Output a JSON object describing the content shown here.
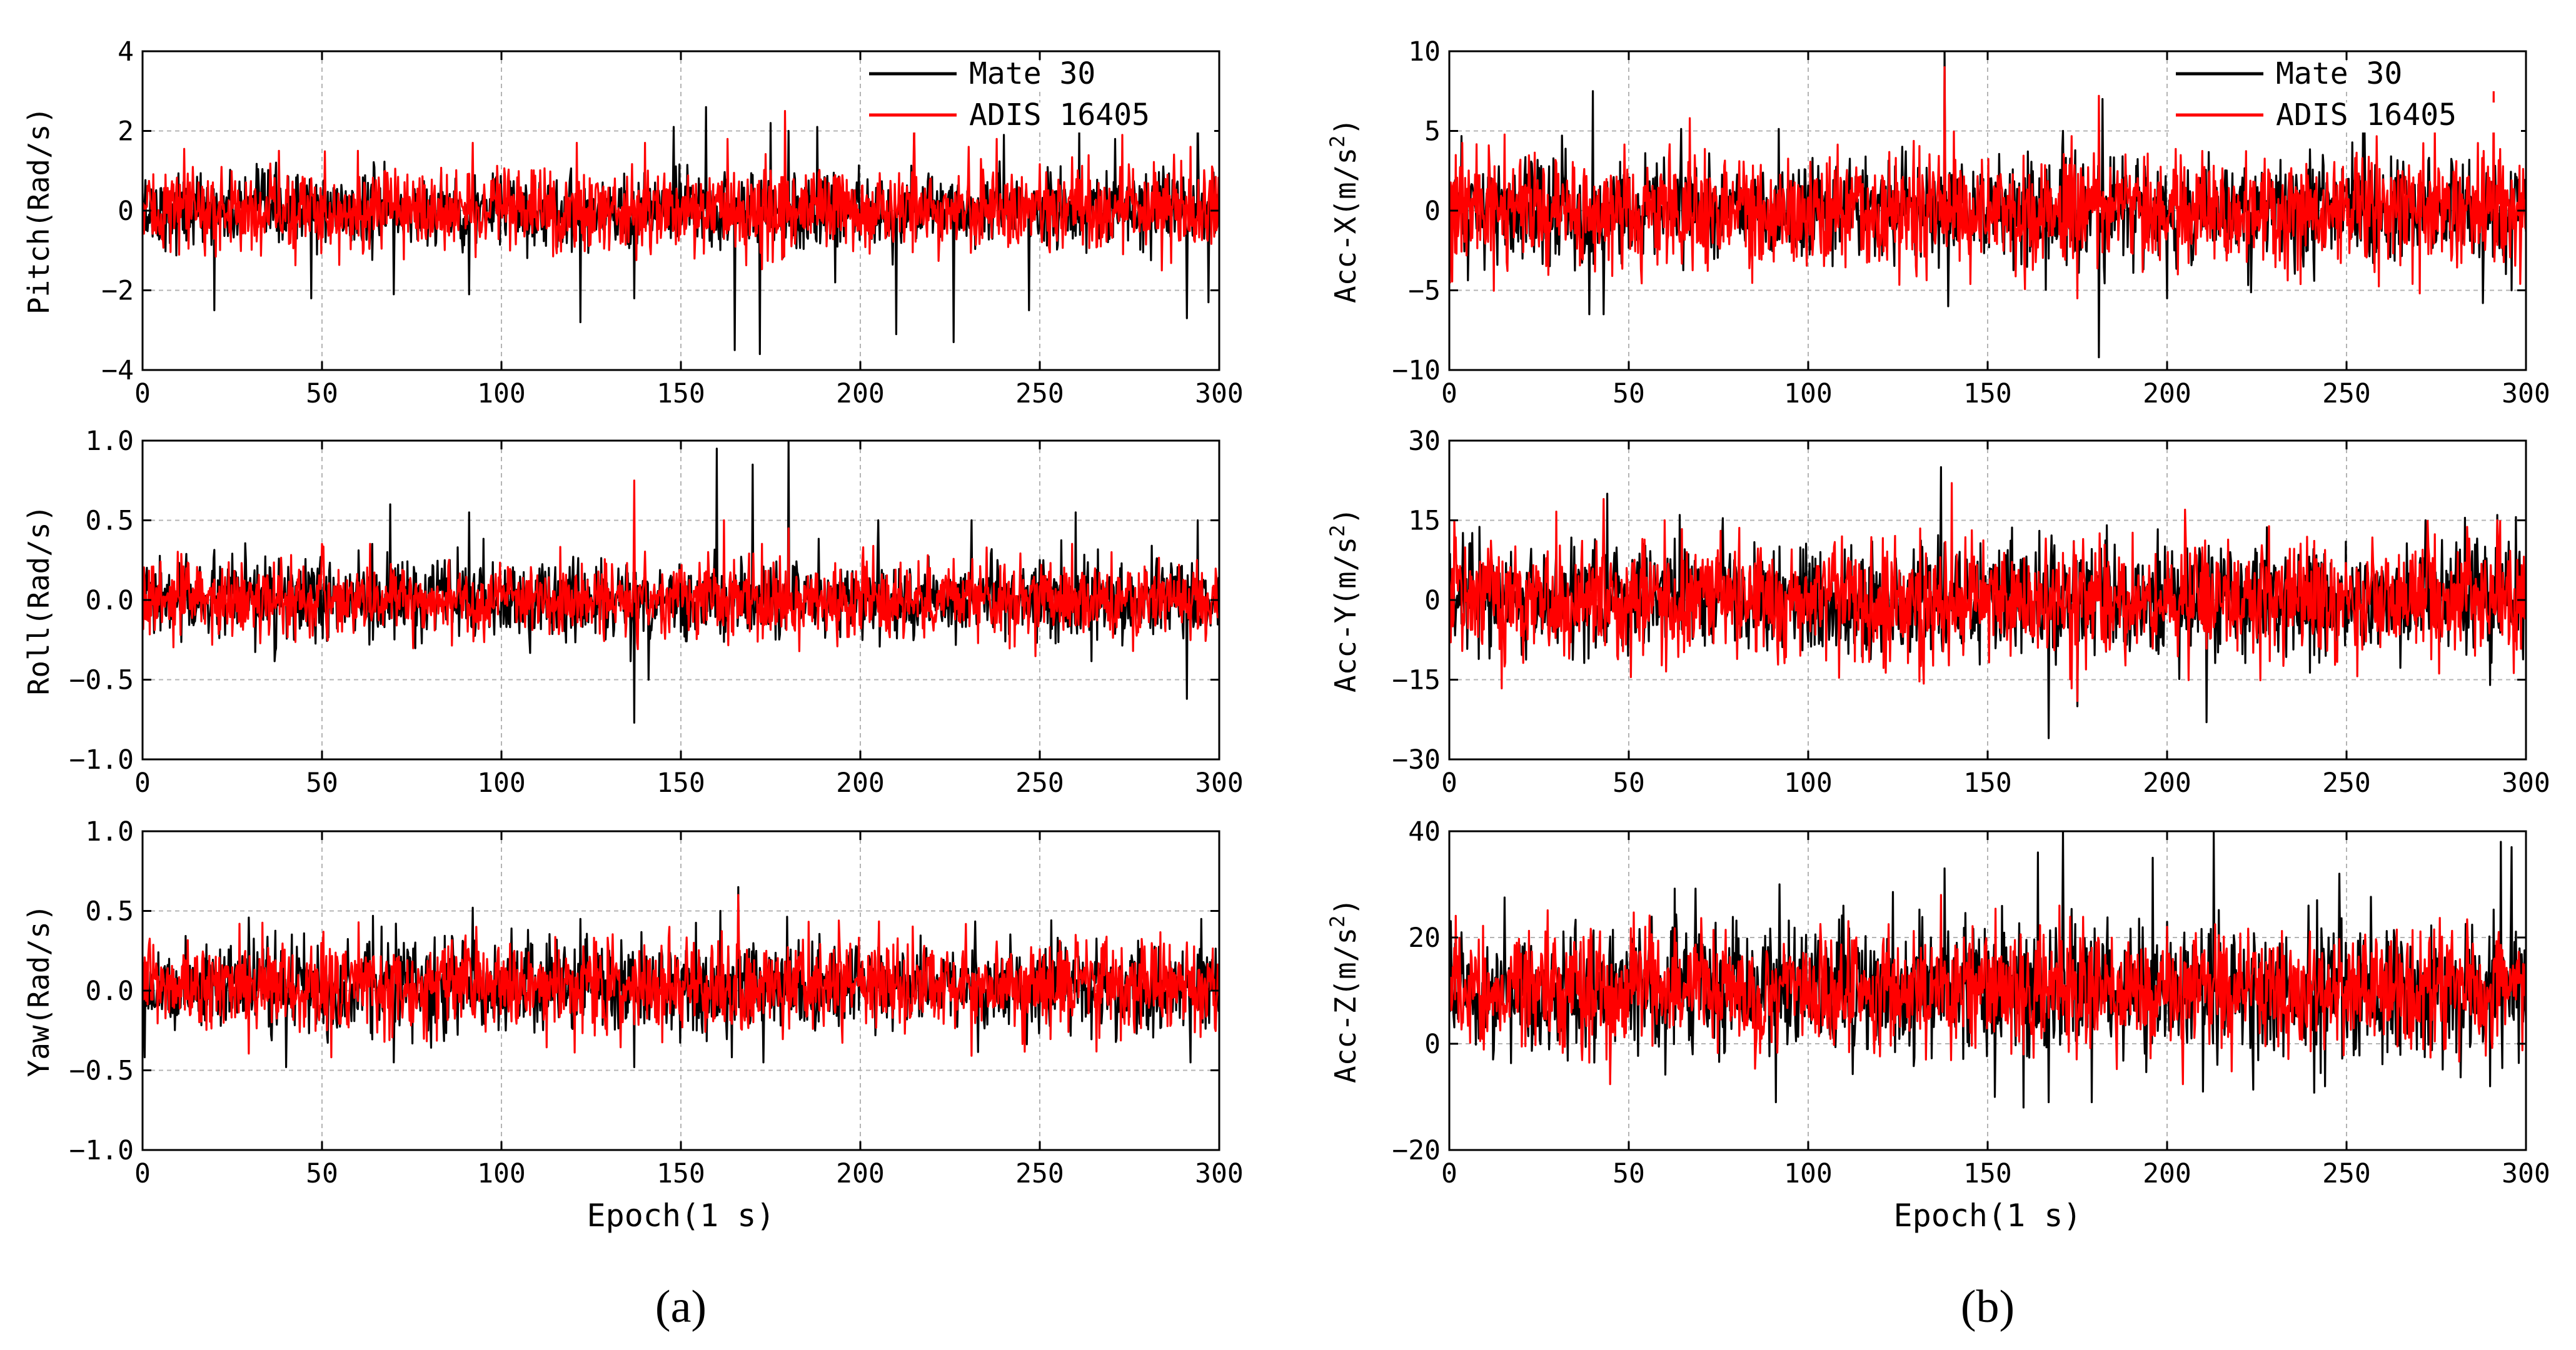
{
  "figure": {
    "panel_labels": [
      "(a)",
      "(b)"
    ],
    "colors": {
      "mate": "#000000",
      "adis": "#ff0000",
      "grid": "#b4b4b4",
      "axis": "#000000"
    }
  },
  "chart_data": [
    {
      "type": "line",
      "id": "pitch",
      "panel": "a",
      "ylabel": "Pitch(Rad/s)",
      "xlabel": "",
      "xlim": [
        0,
        300
      ],
      "ylim": [
        -4,
        4
      ],
      "xticks": [
        0,
        50,
        100,
        150,
        200,
        250,
        300
      ],
      "yticks": [
        -4,
        -2,
        0,
        2,
        4
      ],
      "ytick_labels": [
        "−4",
        "−2",
        "0",
        "2",
        "4"
      ],
      "legend": {
        "position": "top-right",
        "entries": [
          "Mate 30",
          "ADIS 16405"
        ]
      },
      "series": [
        {
          "name": "Mate 30",
          "center": 0.0,
          "amplitude": 0.45,
          "peaks": [
            [
              20,
              -2.5
            ],
            [
              47,
              -2.2
            ],
            [
              70,
              -2.1
            ],
            [
              91,
              -2.1
            ],
            [
              122,
              -2.8
            ],
            [
              137,
              -2.2
            ],
            [
              148,
              2.1
            ],
            [
              157,
              2.6
            ],
            [
              165,
              -3.5
            ],
            [
              172,
              -3.6
            ],
            [
              175,
              2.2
            ],
            [
              180,
              2.0
            ],
            [
              188,
              2.1
            ],
            [
              193,
              -1.8
            ],
            [
              210,
              -3.1
            ],
            [
              215,
              2.2
            ],
            [
              226,
              -3.3
            ],
            [
              240,
              1.9
            ],
            [
              247,
              -2.5
            ],
            [
              261,
              2.0
            ],
            [
              271,
              1.8
            ],
            [
              291,
              -2.7
            ],
            [
              294,
              2.4
            ],
            [
              297,
              -2.3
            ]
          ]
        },
        {
          "name": "ADIS 16405",
          "center": 0.0,
          "amplitude": 0.5,
          "peaks": [
            [
              38,
              1.5
            ],
            [
              60,
              1.5
            ],
            [
              92,
              1.7
            ],
            [
              121,
              1.7
            ],
            [
              140,
              1.7
            ],
            [
              163,
              1.8
            ],
            [
              179,
              2.5
            ],
            [
              215,
              2.2
            ],
            [
              238,
              1.8
            ],
            [
              273,
              1.9
            ],
            [
              292,
              1.6
            ]
          ]
        }
      ]
    },
    {
      "type": "line",
      "id": "roll",
      "panel": "a",
      "ylabel": "Roll(Rad/s)",
      "xlabel": "",
      "xlim": [
        0,
        300
      ],
      "ylim": [
        -1,
        1
      ],
      "xticks": [
        0,
        50,
        100,
        150,
        200,
        250,
        300
      ],
      "yticks": [
        -1,
        -0.5,
        0,
        0.5,
        1
      ],
      "ytick_labels": [
        "−1.0",
        "−0.5",
        "0.0",
        "0.5",
        "1.0"
      ],
      "series": [
        {
          "name": "Mate 30",
          "center": 0.0,
          "amplitude": 0.12,
          "peaks": [
            [
              69,
              0.6
            ],
            [
              91,
              0.55
            ],
            [
              137,
              -0.77
            ],
            [
              141,
              -0.5
            ],
            [
              160,
              0.95
            ],
            [
              170,
              0.85
            ],
            [
              180,
              1.0
            ],
            [
              205,
              0.5
            ],
            [
              231,
              0.5
            ],
            [
              260,
              0.55
            ],
            [
              291,
              -0.62
            ],
            [
              294,
              0.5
            ]
          ]
        },
        {
          "name": "ADIS 16405",
          "center": 0.0,
          "amplitude": 0.11,
          "peaks": [
            [
              137,
              0.75
            ],
            [
              162,
              0.5
            ],
            [
              180,
              0.45
            ],
            [
              270,
              0.3
            ]
          ]
        }
      ]
    },
    {
      "type": "line",
      "id": "yaw",
      "panel": "a",
      "ylabel": "Yaw(Rad/s)",
      "xlabel": "Epoch(1 s)",
      "xlim": [
        0,
        300
      ],
      "ylim": [
        -1,
        1
      ],
      "xticks": [
        0,
        50,
        100,
        150,
        200,
        250,
        300
      ],
      "yticks": [
        -1,
        -0.5,
        0,
        0.5,
        1
      ],
      "ytick_labels": [
        "−1.0",
        "−0.5",
        "0.0",
        "0.5",
        "1.0"
      ],
      "series": [
        {
          "name": "Mate 30",
          "center": 0.03,
          "amplitude": 0.14,
          "peaks": [
            [
              40,
              -0.48
            ],
            [
              70,
              -0.45
            ],
            [
              92,
              0.52
            ],
            [
              122,
              0.45
            ],
            [
              137,
              -0.48
            ],
            [
              161,
              0.5
            ],
            [
              166,
              0.65
            ],
            [
              173,
              -0.45
            ],
            [
              292,
              -0.45
            ],
            [
              295,
              0.45
            ]
          ]
        },
        {
          "name": "ADIS 16405",
          "center": 0.03,
          "amplitude": 0.14,
          "peaks": [
            [
              166,
              0.6
            ],
            [
              93,
              0.4
            ],
            [
              260,
              0.35
            ]
          ]
        }
      ]
    },
    {
      "type": "line",
      "id": "accx",
      "panel": "b",
      "ylabel": "Acc-X(m/s2)",
      "ylabel_main": "Acc-X(m/s",
      "ylabel_sup": "2",
      "ylabel_end": ")",
      "xlabel": "",
      "xlim": [
        0,
        300
      ],
      "ylim": [
        -10,
        10
      ],
      "xticks": [
        0,
        50,
        100,
        150,
        200,
        250,
        300
      ],
      "yticks": [
        -10,
        -5,
        0,
        5,
        10
      ],
      "ytick_labels": [
        "−10",
        "−5",
        "0",
        "5",
        "10"
      ],
      "legend": {
        "position": "top-right",
        "entries": [
          "Mate 30",
          "ADIS 16405"
        ]
      },
      "series": [
        {
          "name": "Mate 30",
          "center": 0.0,
          "amplitude": 1.6,
          "peaks": [
            [
              39,
              -6.5
            ],
            [
              40,
              7.5
            ],
            [
              43,
              -6.5
            ],
            [
              138,
              10.0
            ],
            [
              139,
              -6.0
            ],
            [
              171,
              5.0
            ],
            [
              181,
              -9.2
            ],
            [
              182,
              7.0
            ],
            [
              200,
              -5.5
            ],
            [
              255,
              5.5
            ],
            [
              288,
              -5.8
            ],
            [
              296,
              -5.0
            ]
          ]
        },
        {
          "name": "ADIS 16405",
          "center": 0.0,
          "amplitude": 1.7,
          "peaks": [
            [
              67,
              5.8
            ],
            [
              138,
              9.0
            ],
            [
              175,
              -5.5
            ],
            [
              181,
              7.2
            ],
            [
              203,
              -4.0
            ],
            [
              291,
              7.5
            ]
          ]
        }
      ]
    },
    {
      "type": "line",
      "id": "accy",
      "panel": "b",
      "ylabel": "Acc-Y(m/s2)",
      "ylabel_main": "Acc-Y(m/s",
      "ylabel_sup": "2",
      "ylabel_end": ")",
      "xlabel": "",
      "xlim": [
        0,
        300
      ],
      "ylim": [
        -30,
        30
      ],
      "xticks": [
        0,
        50,
        100,
        150,
        200,
        250,
        300
      ],
      "yticks": [
        -30,
        -15,
        0,
        15,
        30
      ],
      "ytick_labels": [
        "−30",
        "−15",
        "0",
        "15",
        "30"
      ],
      "series": [
        {
          "name": "Mate 30",
          "center": 0.0,
          "amplitude": 5.0,
          "peaks": [
            [
              44,
              20.0
            ],
            [
              137,
              25.0
            ],
            [
              167,
              -26.0
            ],
            [
              175,
              -20.0
            ],
            [
              211,
              -23.0
            ],
            [
              290,
              -16.0
            ],
            [
              292,
              16.0
            ],
            [
              272,
              15.0
            ]
          ]
        },
        {
          "name": "ADIS 16405",
          "center": 0.0,
          "amplitude": 5.2,
          "peaks": [
            [
              43,
              19.0
            ],
            [
              140,
              22.0
            ],
            [
              175,
              -19.0
            ],
            [
              205,
              17.0
            ],
            [
              292,
              15.0
            ],
            [
              60,
              15.0
            ]
          ]
        }
      ]
    },
    {
      "type": "line",
      "id": "accz",
      "panel": "b",
      "ylabel": "Acc-Z(m/s2)",
      "ylabel_main": "Acc-Z(m/s",
      "ylabel_sup": "2",
      "ylabel_end": ")",
      "xlabel": "Epoch(1 s)",
      "xlim": [
        0,
        300
      ],
      "ylim": [
        -20,
        40
      ],
      "xticks": [
        0,
        50,
        100,
        150,
        200,
        250,
        300
      ],
      "yticks": [
        -20,
        0,
        20,
        40
      ],
      "ytick_labels": [
        "−20",
        "0",
        "20",
        "40"
      ],
      "series": [
        {
          "name": "Mate 30",
          "center": 10.0,
          "amplitude": 6.0,
          "peaks": [
            [
              91,
              -11.0
            ],
            [
              92,
              30.0
            ],
            [
              138,
              33.0
            ],
            [
              152,
              -10.0
            ],
            [
              160,
              -12.0
            ],
            [
              164,
              36.0
            ],
            [
              167,
              -11.0
            ],
            [
              171,
              40.0
            ],
            [
              179,
              -11.0
            ],
            [
              196,
              35.0
            ],
            [
              210,
              -9.0
            ],
            [
              213,
              40.0
            ],
            [
              244,
              -8.0
            ],
            [
              248,
              32.0
            ],
            [
              290,
              -8.0
            ],
            [
              293,
              38.0
            ],
            [
              296,
              37.0
            ]
          ]
        },
        {
          "name": "ADIS 16405",
          "center": 10.0,
          "amplitude": 5.5,
          "peaks": [
            [
              137,
              28.0
            ],
            [
              170,
              26.0
            ],
            [
              200,
              22.0
            ],
            [
              160,
              -2.0
            ]
          ]
        }
      ]
    }
  ]
}
